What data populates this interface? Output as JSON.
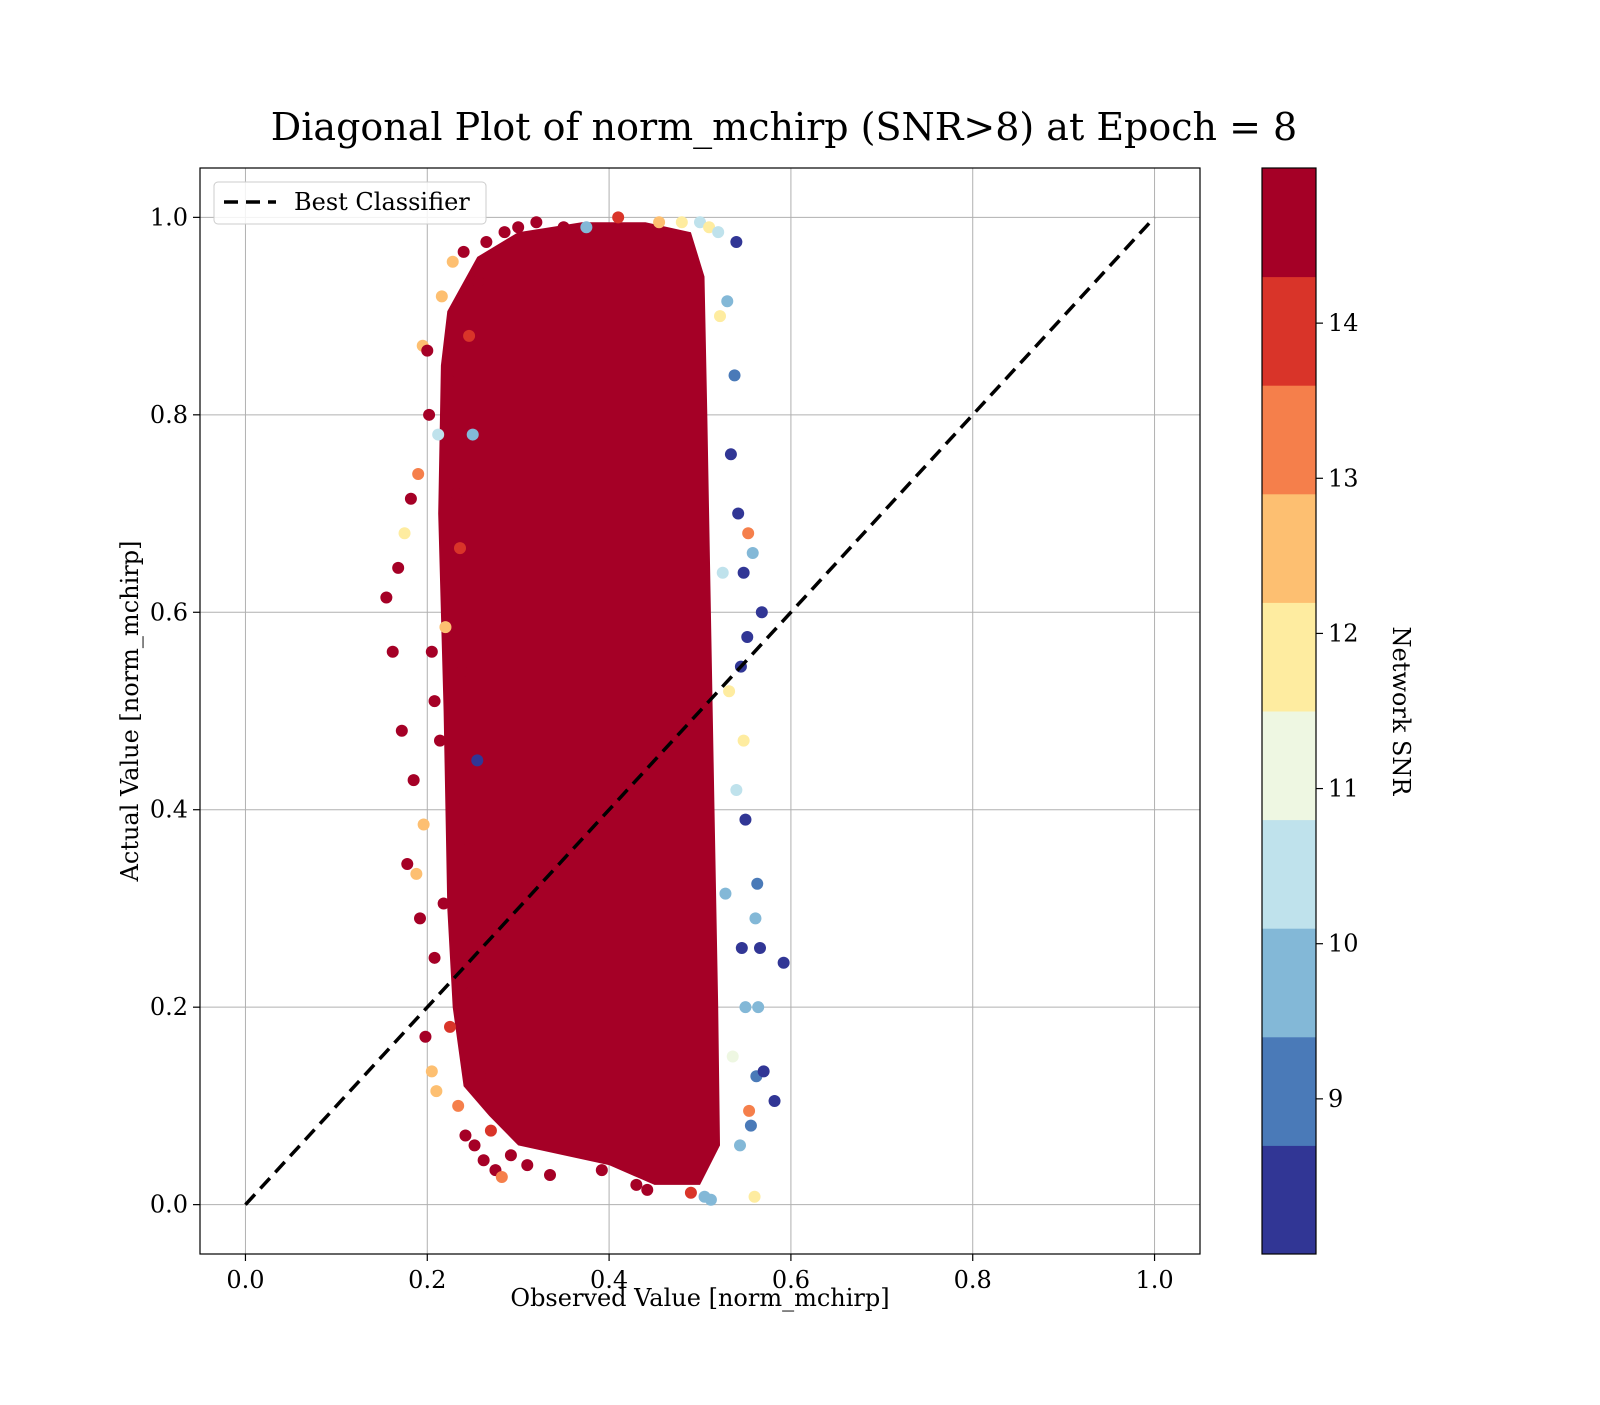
{
  "chart_data": {
    "type": "scatter",
    "title": "Diagonal Plot of norm_mchirp (SNR>8) at Epoch = 8",
    "xlabel": "Observed Value [norm_mchirp]",
    "ylabel": "Actual Value [norm_mchirp]",
    "xlim": [
      -0.05,
      1.05
    ],
    "ylim": [
      -0.05,
      1.05
    ],
    "xticks": [
      0.0,
      0.2,
      0.4,
      0.6,
      0.8,
      1.0
    ],
    "yticks": [
      0.0,
      0.2,
      0.4,
      0.6,
      0.8,
      1.0
    ],
    "xtick_labels": [
      "0.0",
      "0.2",
      "0.4",
      "0.6",
      "0.8",
      "1.0"
    ],
    "ytick_labels": [
      "0.0",
      "0.2",
      "0.4",
      "0.6",
      "0.8",
      "1.0"
    ],
    "grid": true,
    "legend": {
      "placement": "upper-left",
      "entries": [
        {
          "label": "Best Classifier",
          "style": "dashed",
          "color": "#000000"
        }
      ]
    },
    "reference_line": {
      "name": "Best Classifier",
      "x": [
        0.0,
        1.0
      ],
      "y": [
        0.0,
        1.0
      ],
      "style": "dashed"
    },
    "colorbar": {
      "label": "Network SNR",
      "min": 8,
      "max": 15,
      "ticks": [
        9,
        10,
        11,
        12,
        13,
        14
      ],
      "tick_labels": [
        "9",
        "10",
        "11",
        "12",
        "13",
        "14"
      ],
      "bands": [
        {
          "from": 8.0,
          "to": 8.7,
          "color": "#313695"
        },
        {
          "from": 8.7,
          "to": 9.4,
          "color": "#4a7ab8"
        },
        {
          "from": 9.4,
          "to": 10.1,
          "color": "#83b8d7"
        },
        {
          "from": 10.1,
          "to": 10.8,
          "color": "#bfe2ec"
        },
        {
          "from": 10.8,
          "to": 11.5,
          "color": "#eef7e2"
        },
        {
          "from": 11.5,
          "to": 12.2,
          "color": "#feeca0"
        },
        {
          "from": 12.2,
          "to": 12.9,
          "color": "#fdbf71"
        },
        {
          "from": 12.9,
          "to": 13.6,
          "color": "#f57f4b"
        },
        {
          "from": 13.6,
          "to": 14.3,
          "color": "#d93429"
        },
        {
          "from": 14.3,
          "to": 15.0,
          "color": "#a50026"
        }
      ]
    },
    "points": [
      {
        "x": 0.155,
        "y": 0.615,
        "snr": 14.8
      },
      {
        "x": 0.162,
        "y": 0.56,
        "snr": 14.8
      },
      {
        "x": 0.168,
        "y": 0.645,
        "snr": 14.8
      },
      {
        "x": 0.172,
        "y": 0.48,
        "snr": 14.8
      },
      {
        "x": 0.175,
        "y": 0.68,
        "snr": 12
      },
      {
        "x": 0.178,
        "y": 0.345,
        "snr": 14.8
      },
      {
        "x": 0.182,
        "y": 0.715,
        "snr": 14.8
      },
      {
        "x": 0.185,
        "y": 0.43,
        "snr": 14.8
      },
      {
        "x": 0.188,
        "y": 0.335,
        "snr": 12.5
      },
      {
        "x": 0.19,
        "y": 0.74,
        "snr": 13.2
      },
      {
        "x": 0.192,
        "y": 0.29,
        "snr": 14.8
      },
      {
        "x": 0.195,
        "y": 0.87,
        "snr": 12.5
      },
      {
        "x": 0.196,
        "y": 0.385,
        "snr": 12.5
      },
      {
        "x": 0.198,
        "y": 0.17,
        "snr": 14.8
      },
      {
        "x": 0.2,
        "y": 0.865,
        "snr": 14.8
      },
      {
        "x": 0.202,
        "y": 0.8,
        "snr": 14.8
      },
      {
        "x": 0.205,
        "y": 0.56,
        "snr": 14.8
      },
      {
        "x": 0.205,
        "y": 0.135,
        "snr": 12.5
      },
      {
        "x": 0.208,
        "y": 0.51,
        "snr": 14.8
      },
      {
        "x": 0.208,
        "y": 0.25,
        "snr": 14.8
      },
      {
        "x": 0.21,
        "y": 0.115,
        "snr": 12.5
      },
      {
        "x": 0.212,
        "y": 0.78,
        "snr": 10.2
      },
      {
        "x": 0.214,
        "y": 0.47,
        "snr": 14.8
      },
      {
        "x": 0.216,
        "y": 0.92,
        "snr": 12.5
      },
      {
        "x": 0.218,
        "y": 0.305,
        "snr": 14.8
      },
      {
        "x": 0.22,
        "y": 0.585,
        "snr": 12.5
      },
      {
        "x": 0.224,
        "y": 0.835,
        "snr": 14.8
      },
      {
        "x": 0.225,
        "y": 0.18,
        "snr": 14
      },
      {
        "x": 0.228,
        "y": 0.955,
        "snr": 12.5
      },
      {
        "x": 0.23,
        "y": 0.41,
        "snr": 14.8
      },
      {
        "x": 0.232,
        "y": 0.72,
        "snr": 14.8
      },
      {
        "x": 0.234,
        "y": 0.1,
        "snr": 13.2
      },
      {
        "x": 0.236,
        "y": 0.665,
        "snr": 14
      },
      {
        "x": 0.238,
        "y": 0.54,
        "snr": 14.8
      },
      {
        "x": 0.24,
        "y": 0.965,
        "snr": 14.8
      },
      {
        "x": 0.242,
        "y": 0.07,
        "snr": 14.8
      },
      {
        "x": 0.245,
        "y": 0.36,
        "snr": 14.8
      },
      {
        "x": 0.246,
        "y": 0.88,
        "snr": 14
      },
      {
        "x": 0.248,
        "y": 0.215,
        "snr": 14.8
      },
      {
        "x": 0.25,
        "y": 0.78,
        "snr": 9.5
      },
      {
        "x": 0.252,
        "y": 0.06,
        "snr": 14.8
      },
      {
        "x": 0.255,
        "y": 0.45,
        "snr": 8.5
      },
      {
        "x": 0.256,
        "y": 0.935,
        "snr": 14.8
      },
      {
        "x": 0.258,
        "y": 0.13,
        "snr": 14.8
      },
      {
        "x": 0.262,
        "y": 0.045,
        "snr": 14.8
      },
      {
        "x": 0.265,
        "y": 0.975,
        "snr": 14.8
      },
      {
        "x": 0.27,
        "y": 0.075,
        "snr": 14
      },
      {
        "x": 0.275,
        "y": 0.035,
        "snr": 14.8
      },
      {
        "x": 0.282,
        "y": 0.028,
        "snr": 13.2
      },
      {
        "x": 0.285,
        "y": 0.985,
        "snr": 14.8
      },
      {
        "x": 0.292,
        "y": 0.05,
        "snr": 14.8
      },
      {
        "x": 0.3,
        "y": 0.99,
        "snr": 14.8
      },
      {
        "x": 0.31,
        "y": 0.04,
        "snr": 14.8
      },
      {
        "x": 0.32,
        "y": 0.995,
        "snr": 14.8
      },
      {
        "x": 0.335,
        "y": 0.03,
        "snr": 14.8
      },
      {
        "x": 0.35,
        "y": 0.99,
        "snr": 14.8
      },
      {
        "x": 0.375,
        "y": 0.99,
        "snr": 10
      },
      {
        "x": 0.392,
        "y": 0.035,
        "snr": 14.8
      },
      {
        "x": 0.41,
        "y": 1.0,
        "snr": 14
      },
      {
        "x": 0.43,
        "y": 0.02,
        "snr": 14.8
      },
      {
        "x": 0.442,
        "y": 0.015,
        "snr": 14.8
      },
      {
        "x": 0.455,
        "y": 0.995,
        "snr": 12.5
      },
      {
        "x": 0.48,
        "y": 0.995,
        "snr": 12
      },
      {
        "x": 0.49,
        "y": 0.012,
        "snr": 14
      },
      {
        "x": 0.5,
        "y": 0.995,
        "snr": 10.2
      },
      {
        "x": 0.505,
        "y": 0.008,
        "snr": 9.8
      },
      {
        "x": 0.51,
        "y": 0.99,
        "snr": 11.5
      },
      {
        "x": 0.512,
        "y": 0.005,
        "snr": 9.5
      },
      {
        "x": 0.52,
        "y": 0.985,
        "snr": 10.2
      },
      {
        "x": 0.522,
        "y": 0.9,
        "snr": 11.5
      },
      {
        "x": 0.525,
        "y": 0.64,
        "snr": 10.2
      },
      {
        "x": 0.528,
        "y": 0.315,
        "snr": 9.5
      },
      {
        "x": 0.53,
        "y": 0.915,
        "snr": 9.5
      },
      {
        "x": 0.532,
        "y": 0.52,
        "snr": 12
      },
      {
        "x": 0.534,
        "y": 0.76,
        "snr": 8.5
      },
      {
        "x": 0.536,
        "y": 0.15,
        "snr": 11
      },
      {
        "x": 0.538,
        "y": 0.84,
        "snr": 9
      },
      {
        "x": 0.54,
        "y": 0.975,
        "snr": 8.3
      },
      {
        "x": 0.54,
        "y": 0.42,
        "snr": 10.2
      },
      {
        "x": 0.542,
        "y": 0.7,
        "snr": 8.5
      },
      {
        "x": 0.544,
        "y": 0.06,
        "snr": 9.8
      },
      {
        "x": 0.545,
        "y": 0.545,
        "snr": 8.5
      },
      {
        "x": 0.546,
        "y": 0.26,
        "snr": 8.5
      },
      {
        "x": 0.548,
        "y": 0.64,
        "snr": 8.5
      },
      {
        "x": 0.548,
        "y": 0.47,
        "snr": 11.5
      },
      {
        "x": 0.55,
        "y": 0.39,
        "snr": 8.5
      },
      {
        "x": 0.55,
        "y": 0.2,
        "snr": 9.5
      },
      {
        "x": 0.552,
        "y": 0.575,
        "snr": 8.3
      },
      {
        "x": 0.553,
        "y": 0.68,
        "snr": 13.5
      },
      {
        "x": 0.554,
        "y": 0.095,
        "snr": 13.2
      },
      {
        "x": 0.556,
        "y": 0.08,
        "snr": 9
      },
      {
        "x": 0.558,
        "y": 0.66,
        "snr": 9.5
      },
      {
        "x": 0.56,
        "y": 0.008,
        "snr": 11.8
      },
      {
        "x": 0.561,
        "y": 0.29,
        "snr": 10
      },
      {
        "x": 0.562,
        "y": 0.13,
        "snr": 9
      },
      {
        "x": 0.563,
        "y": 0.325,
        "snr": 9
      },
      {
        "x": 0.564,
        "y": 0.2,
        "snr": 9.8
      },
      {
        "x": 0.566,
        "y": 0.26,
        "snr": 8.5
      },
      {
        "x": 0.568,
        "y": 0.6,
        "snr": 8.5
      },
      {
        "x": 0.57,
        "y": 0.135,
        "snr": 8.5
      },
      {
        "x": 0.582,
        "y": 0.105,
        "snr": 8.5
      },
      {
        "x": 0.592,
        "y": 0.245,
        "snr": 8.5
      }
    ],
    "dense_region": {
      "polygon": [
        [
          0.222,
          0.905
        ],
        [
          0.255,
          0.96
        ],
        [
          0.3,
          0.985
        ],
        [
          0.37,
          0.995
        ],
        [
          0.44,
          0.995
        ],
        [
          0.49,
          0.985
        ],
        [
          0.505,
          0.94
        ],
        [
          0.508,
          0.8
        ],
        [
          0.512,
          0.6
        ],
        [
          0.516,
          0.4
        ],
        [
          0.52,
          0.2
        ],
        [
          0.522,
          0.06
        ],
        [
          0.5,
          0.02
        ],
        [
          0.45,
          0.02
        ],
        [
          0.4,
          0.04
        ],
        [
          0.35,
          0.05
        ],
        [
          0.3,
          0.06
        ],
        [
          0.268,
          0.09
        ],
        [
          0.24,
          0.12
        ],
        [
          0.228,
          0.2
        ],
        [
          0.222,
          0.3
        ],
        [
          0.218,
          0.5
        ],
        [
          0.212,
          0.7
        ],
        [
          0.215,
          0.85
        ]
      ],
      "snr": 14.8
    }
  }
}
